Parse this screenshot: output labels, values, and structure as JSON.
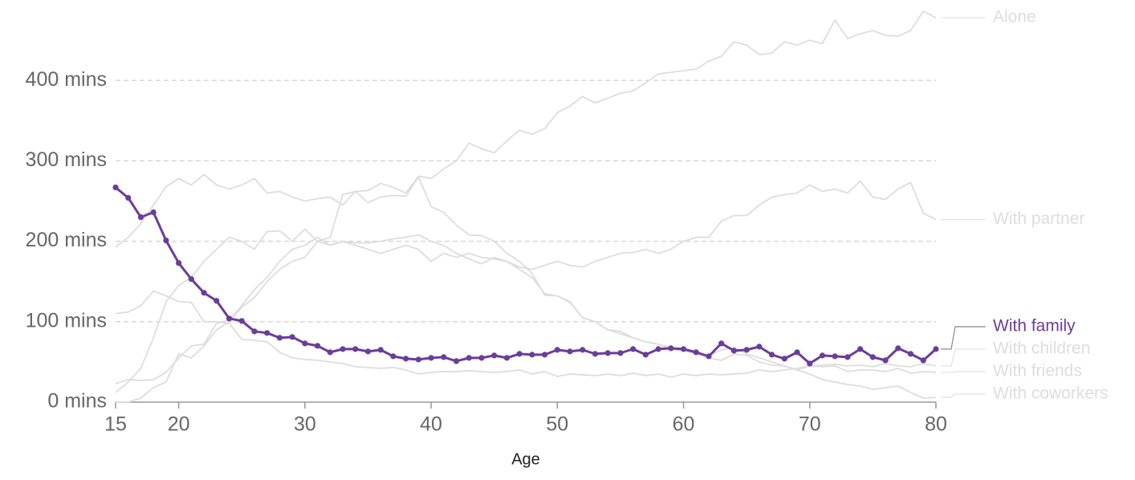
{
  "chart_data": {
    "type": "line",
    "x_label": "Age",
    "xlim": [
      15,
      80
    ],
    "xticks": [
      15,
      20,
      30,
      40,
      50,
      60,
      70,
      80
    ],
    "ylim": [
      0,
      490
    ],
    "yticks": [
      {
        "value": 0,
        "label": "0 mins"
      },
      {
        "value": 100,
        "label": "100 mins"
      },
      {
        "value": 200,
        "label": "200 mins"
      },
      {
        "value": 300,
        "label": "300 mins"
      },
      {
        "value": 400,
        "label": "400 mins"
      }
    ],
    "grid": true,
    "x": [
      15,
      16,
      17,
      18,
      19,
      20,
      21,
      22,
      23,
      24,
      25,
      26,
      27,
      28,
      29,
      30,
      31,
      32,
      33,
      34,
      35,
      36,
      37,
      38,
      39,
      40,
      41,
      42,
      43,
      44,
      45,
      46,
      47,
      48,
      49,
      50,
      51,
      52,
      53,
      54,
      55,
      56,
      57,
      58,
      59,
      60,
      61,
      62,
      63,
      64,
      65,
      66,
      67,
      68,
      69,
      70,
      71,
      72,
      73,
      74,
      75,
      76,
      77,
      78,
      79,
      80
    ],
    "series": [
      {
        "name": "Alone",
        "color": "#dddddd",
        "markers": false,
        "values": [
          12,
          25,
          42,
          80,
          125,
          145,
          155,
          175,
          190,
          205,
          200,
          190,
          212,
          213,
          200,
          215,
          200,
          205,
          258,
          262,
          263,
          272,
          267,
          260,
          281,
          278,
          290,
          300,
          322,
          315,
          310,
          325,
          338,
          333,
          340,
          360,
          368,
          380,
          372,
          378,
          384,
          387,
          397,
          408,
          410,
          412,
          414,
          424,
          430,
          448,
          444,
          432,
          434,
          448,
          444,
          450,
          446,
          475,
          452,
          458,
          462,
          456,
          455,
          462,
          486,
          478
        ]
      },
      {
        "name": "With partner",
        "color": "#dddddd",
        "markers": false,
        "values": [
          0,
          0,
          5,
          18,
          25,
          60,
          55,
          70,
          90,
          100,
          118,
          130,
          150,
          165,
          175,
          180,
          200,
          195,
          200,
          198,
          198,
          200,
          203,
          205,
          208,
          200,
          195,
          185,
          178,
          172,
          180,
          175,
          168,
          165,
          170,
          175,
          170,
          168,
          175,
          180,
          185,
          186,
          190,
          185,
          190,
          200,
          205,
          205,
          225,
          232,
          232,
          245,
          255,
          258,
          260,
          270,
          262,
          265,
          260,
          275,
          255,
          252,
          265,
          273,
          235,
          227
        ]
      },
      {
        "name": "With children",
        "color": "#dddddd",
        "markers": false,
        "values": [
          23,
          28,
          27,
          28,
          37,
          55,
          70,
          72,
          98,
          102,
          120,
          140,
          155,
          175,
          190,
          195,
          205,
          195,
          200,
          195,
          190,
          185,
          190,
          195,
          190,
          175,
          185,
          180,
          185,
          180,
          178,
          175,
          165,
          155,
          135,
          132,
          125,
          105,
          100,
          90,
          85,
          80,
          75,
          72,
          68,
          65,
          60,
          55,
          52,
          60,
          58,
          50,
          46,
          45,
          40,
          45,
          46,
          47,
          45,
          46,
          44,
          48,
          45,
          44,
          48,
          45
        ]
      },
      {
        "name": "With friends",
        "color": "#dddddd",
        "markers": false,
        "values": [
          110,
          112,
          120,
          138,
          132,
          125,
          124,
          100,
          100,
          98,
          78,
          77,
          75,
          62,
          55,
          53,
          52,
          50,
          48,
          44,
          43,
          42,
          43,
          40,
          35,
          37,
          38,
          38,
          39,
          38,
          37,
          38,
          40,
          35,
          38,
          32,
          35,
          34,
          33,
          35,
          33,
          36,
          33,
          35,
          31,
          35,
          33,
          35,
          34,
          35,
          36,
          40,
          38,
          40,
          42,
          45,
          44,
          45,
          38,
          40,
          40,
          38,
          42,
          36,
          38,
          37
        ]
      },
      {
        "name": "With coworkers",
        "color": "#dddddd",
        "markers": false,
        "values": [
          193,
          205,
          222,
          245,
          268,
          278,
          270,
          283,
          270,
          265,
          270,
          278,
          260,
          262,
          255,
          250,
          253,
          255,
          245,
          262,
          248,
          255,
          257,
          256,
          280,
          243,
          236,
          220,
          208,
          207,
          200,
          185,
          175,
          160,
          133,
          132,
          124,
          105,
          100,
          90,
          88,
          80,
          75,
          72,
          65,
          64,
          60,
          58,
          65,
          68,
          60,
          55,
          50,
          45,
          40,
          35,
          28,
          25,
          22,
          20,
          16,
          18,
          20,
          12,
          5,
          6
        ]
      },
      {
        "name": "With family",
        "color": "#6b3d9a",
        "markers": true,
        "values": [
          267,
          254,
          230,
          236,
          201,
          173,
          153,
          136,
          126,
          104,
          101,
          88,
          86,
          80,
          81,
          73,
          70,
          62,
          66,
          66,
          63,
          65,
          57,
          54,
          53,
          55,
          56,
          51,
          55,
          55,
          58,
          55,
          60,
          59,
          59,
          65,
          63,
          65,
          60,
          61,
          61,
          66,
          59,
          66,
          67,
          66,
          62,
          57,
          73,
          64,
          65,
          69,
          59,
          54,
          62,
          48,
          58,
          57,
          56,
          66,
          56,
          52,
          67,
          60,
          52,
          66
        ]
      }
    ]
  }
}
